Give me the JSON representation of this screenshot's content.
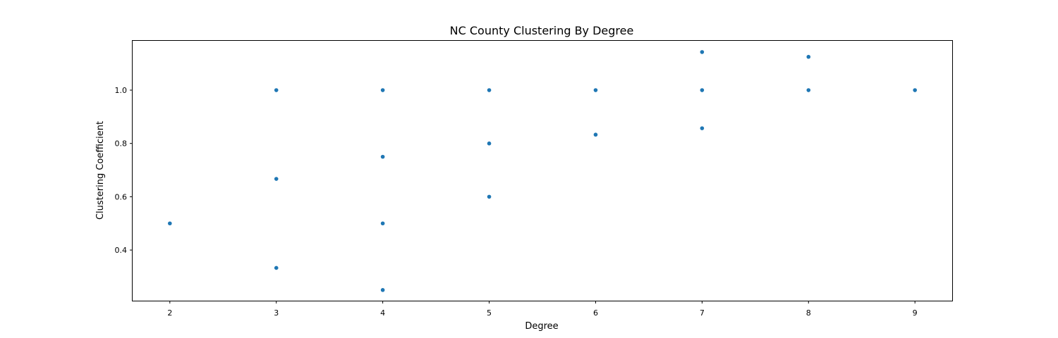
{
  "chart_data": {
    "type": "scatter",
    "title": "NC County Clustering By Degree",
    "xlabel": "Degree",
    "ylabel": "Clustering Coefficient",
    "xlim": [
      1.65,
      9.35
    ],
    "ylim": [
      0.21,
      1.185
    ],
    "xticks": [
      2,
      3,
      4,
      5,
      6,
      7,
      8,
      9
    ],
    "yticks": [
      0.4,
      0.6,
      0.8,
      1.0
    ],
    "ytick_labels": [
      "0.4",
      "0.6",
      "0.8",
      "1.0"
    ],
    "grid": false,
    "marker_color": "#1f77b4",
    "points": [
      {
        "x": 2,
        "y": 0.5
      },
      {
        "x": 3,
        "y": 1.0
      },
      {
        "x": 3,
        "y": 0.667
      },
      {
        "x": 3,
        "y": 0.333
      },
      {
        "x": 4,
        "y": 1.0
      },
      {
        "x": 4,
        "y": 0.75
      },
      {
        "x": 4,
        "y": 0.5
      },
      {
        "x": 4,
        "y": 0.25
      },
      {
        "x": 5,
        "y": 1.0
      },
      {
        "x": 5,
        "y": 0.8
      },
      {
        "x": 5,
        "y": 0.6
      },
      {
        "x": 6,
        "y": 1.0
      },
      {
        "x": 6,
        "y": 0.833
      },
      {
        "x": 7,
        "y": 1.143
      },
      {
        "x": 7,
        "y": 1.0
      },
      {
        "x": 7,
        "y": 0.857
      },
      {
        "x": 8,
        "y": 1.125
      },
      {
        "x": 8,
        "y": 1.0
      },
      {
        "x": 9,
        "y": 1.0
      }
    ]
  }
}
